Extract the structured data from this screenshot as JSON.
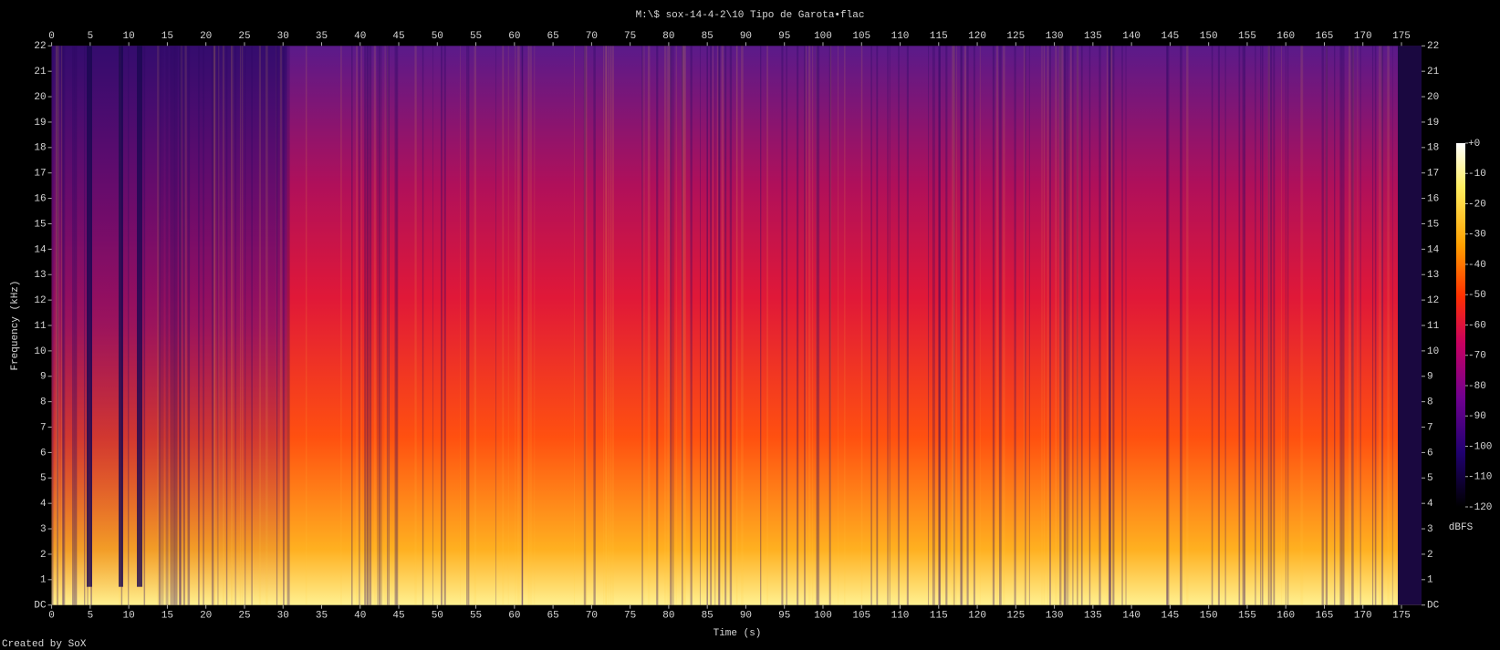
{
  "chart_data": {
    "type": "spectrogram",
    "title": "M:\\$ sox-14-4-2\\10 Tipo de Garota•flac",
    "xlabel": "Time (s)",
    "ylabel": "Frequency (kHz)",
    "colorbar_label": "dBFS",
    "footer": "Created by SoX",
    "xlim": [
      0,
      177.6
    ],
    "xticks": [
      0,
      5,
      10,
      15,
      20,
      25,
      30,
      35,
      40,
      45,
      50,
      55,
      60,
      65,
      70,
      75,
      80,
      85,
      90,
      95,
      100,
      105,
      110,
      115,
      120,
      125,
      130,
      135,
      140,
      145,
      150,
      155,
      160,
      165,
      170,
      175
    ],
    "ylim": [
      0,
      22
    ],
    "yticks": [
      {
        "value": 0,
        "label": "DC"
      },
      1,
      2,
      3,
      4,
      5,
      6,
      7,
      8,
      9,
      10,
      11,
      12,
      13,
      14,
      15,
      16,
      17,
      18,
      19,
      20,
      21,
      22
    ],
    "clim": [
      -120,
      0
    ],
    "cticks": [
      {
        "value": 0,
        "label": "+0"
      },
      -10,
      -20,
      -30,
      -40,
      -50,
      -60,
      -70,
      -80,
      -90,
      -100,
      -110,
      -120
    ]
  }
}
